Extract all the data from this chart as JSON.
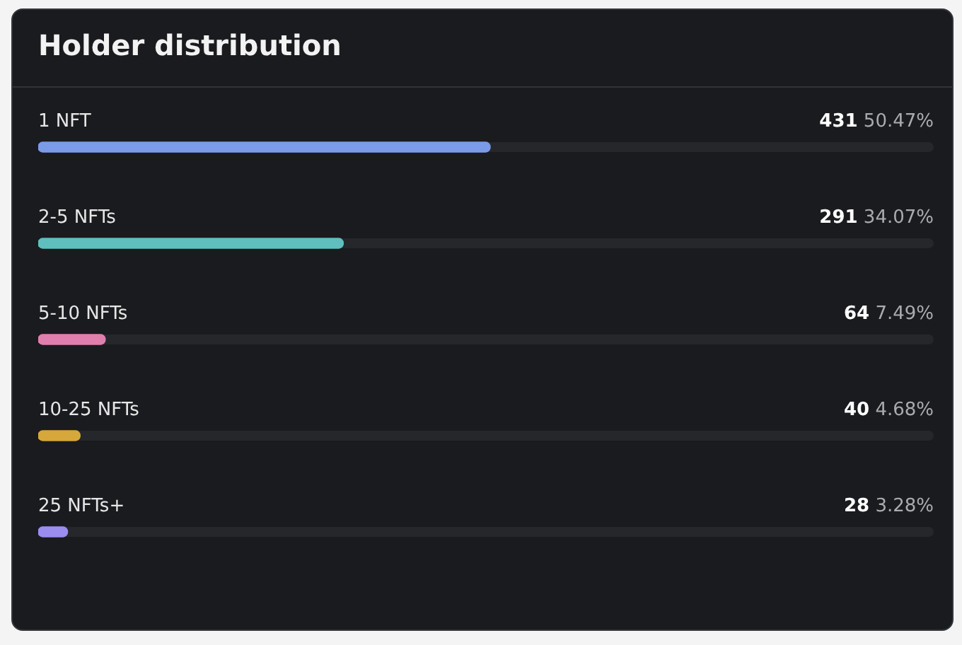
{
  "chart_data": {
    "type": "bar",
    "orientation": "horizontal",
    "title": "Holder distribution",
    "categories": [
      "1 NFT",
      "2-5 NFTs",
      "5-10 NFTs",
      "10-25 NFTs",
      "25 NFTs+"
    ],
    "values": [
      50.47,
      34.07,
      7.49,
      4.68,
      3.28
    ],
    "colors": [
      "#7b9be8",
      "#5fbfbf",
      "#e07fae",
      "#d6a73a",
      "#9b8cf0"
    ],
    "value_labels": [
      "431 50.47%",
      "291 34.07%",
      "64 7.49%",
      "40 4.68%",
      "28 3.28%"
    ],
    "tick_labels": false
  }
}
